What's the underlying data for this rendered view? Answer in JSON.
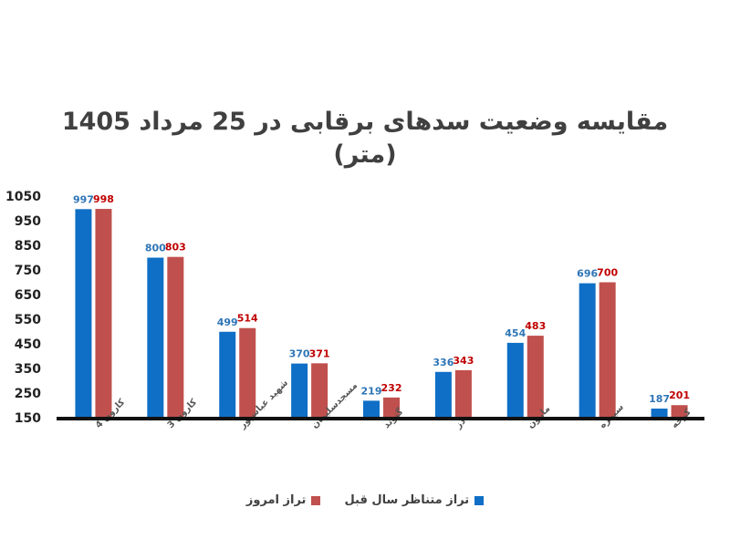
{
  "chart_data": {
    "type": "bar",
    "title": "مقایسه وضعیت سدهای برقابی در 25 مرداد 1405",
    "subtitle": "(متر)",
    "categories": [
      "کارون 4",
      "کارون 3",
      "شهید عباسپور",
      "مسجدسلیمان",
      "گتوند",
      "دز",
      "مارون",
      "سیمره",
      "کرخه"
    ],
    "series": [
      {
        "name": "تراز متناظر سال قبل",
        "color": "#0f6fc6",
        "label_color": "#2e75b6",
        "values": [
          997,
          800,
          499,
          370,
          219,
          336,
          454,
          696,
          187
        ]
      },
      {
        "name": "تراز امروز",
        "color": "#c0504d",
        "label_color": "#c00000",
        "values": [
          998,
          803,
          514,
          371,
          232,
          343,
          483,
          700,
          201
        ]
      }
    ],
    "ylim": [
      150,
      1050
    ],
    "yticks": [
      150,
      250,
      350,
      450,
      550,
      650,
      750,
      850,
      950,
      1050
    ],
    "xlabel": "",
    "ylabel": "",
    "grid": false,
    "legend_position": "bottom"
  }
}
